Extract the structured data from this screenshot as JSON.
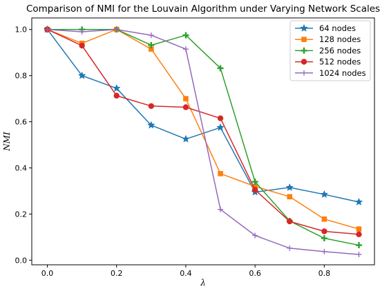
{
  "chart_data": {
    "type": "line",
    "title": "Comparison of NMI for the Louvain Algorithm under Varying Network Scales",
    "xlabel": "λ",
    "ylabel": "NMI",
    "xlim": [
      -0.045,
      0.945
    ],
    "ylim": [
      -0.02,
      1.05
    ],
    "x": [
      0.0,
      0.1,
      0.2,
      0.3,
      0.4,
      0.5,
      0.6,
      0.7,
      0.8,
      0.9
    ],
    "xticks": [
      "0.0",
      "0.2",
      "0.4",
      "0.6",
      "0.8"
    ],
    "yticks": [
      "0.0",
      "0.2",
      "0.4",
      "0.6",
      "0.8",
      "1.0"
    ],
    "grid": false,
    "legend_position": "top-right",
    "series": [
      {
        "name": "64 nodes",
        "color": "#1f77b4",
        "marker": "star",
        "values": [
          1.0,
          0.8,
          0.745,
          0.585,
          0.525,
          0.575,
          0.295,
          0.315,
          0.285,
          0.252
        ]
      },
      {
        "name": "128 nodes",
        "color": "#ff7f0e",
        "marker": "square",
        "values": [
          1.0,
          0.94,
          1.0,
          0.915,
          0.7,
          0.375,
          0.32,
          0.275,
          0.178,
          0.135
        ]
      },
      {
        "name": "256 nodes",
        "color": "#2ca02c",
        "marker": "plus",
        "values": [
          1.0,
          1.0,
          1.0,
          0.932,
          0.975,
          0.832,
          0.34,
          0.17,
          0.095,
          0.065
        ]
      },
      {
        "name": "512 nodes",
        "color": "#d62728",
        "marker": "circle",
        "values": [
          1.0,
          0.93,
          0.713,
          0.668,
          0.663,
          0.615,
          0.305,
          0.168,
          0.125,
          0.112
        ]
      },
      {
        "name": "1024 nodes",
        "color": "#9467bd",
        "marker": "tick",
        "values": [
          1.0,
          0.99,
          1.0,
          0.975,
          0.915,
          0.22,
          0.107,
          0.052,
          0.037,
          0.025
        ]
      }
    ]
  }
}
